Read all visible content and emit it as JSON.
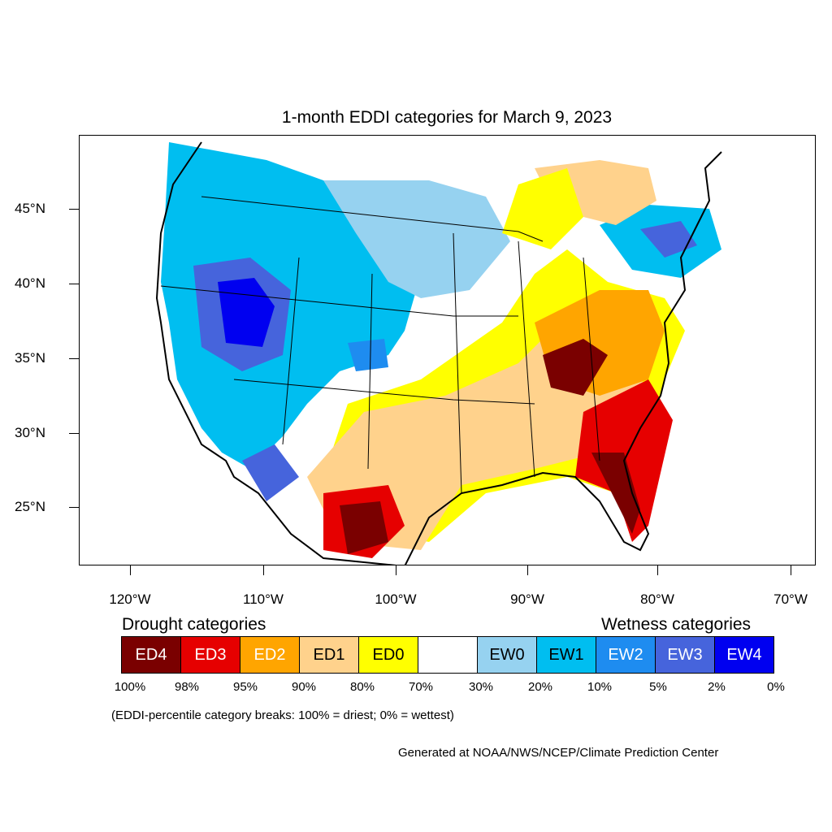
{
  "title": "1-month EDDI categories for March 9, 2023",
  "latitude_labels": [
    "45°N",
    "40°N",
    "35°N",
    "30°N",
    "25°N"
  ],
  "longitude_labels": [
    "120°W",
    "110°W",
    "100°W",
    "90°W",
    "80°W",
    "70°W"
  ],
  "legend": {
    "drought_heading": "Drought categories",
    "wetness_heading": "Wetness categories",
    "categories": [
      {
        "label": "ED4",
        "color": "#7a0000",
        "text_color": "#ffffff"
      },
      {
        "label": "ED3",
        "color": "#e60000",
        "text_color": "#ffffff"
      },
      {
        "label": "ED2",
        "color": "#ffa500",
        "text_color": "#ffffff"
      },
      {
        "label": "ED1",
        "color": "#ffd28c",
        "text_color": "#000000"
      },
      {
        "label": "ED0",
        "color": "#ffff00",
        "text_color": "#000000"
      },
      {
        "label": "",
        "color": "#ffffff",
        "text_color": "#000000"
      },
      {
        "label": "EW0",
        "color": "#96d2f0",
        "text_color": "#000000"
      },
      {
        "label": "EW1",
        "color": "#00bef0",
        "text_color": "#000000"
      },
      {
        "label": "EW2",
        "color": "#1e8cf0",
        "text_color": "#ffffff"
      },
      {
        "label": "EW3",
        "color": "#4664dc",
        "text_color": "#ffffff"
      },
      {
        "label": "EW4",
        "color": "#0000f0",
        "text_color": "#ffffff"
      }
    ],
    "breaks": [
      "100%",
      "98%",
      "95%",
      "90%",
      "80%",
      "70%",
      "30%",
      "20%",
      "10%",
      "5%",
      "2%",
      "0%"
    ]
  },
  "note": "(EDDI-percentile category breaks: 100% = driest; 0% = wettest)",
  "credit": "Generated at NOAA/NWS/NCEP/Climate Prediction Center"
}
